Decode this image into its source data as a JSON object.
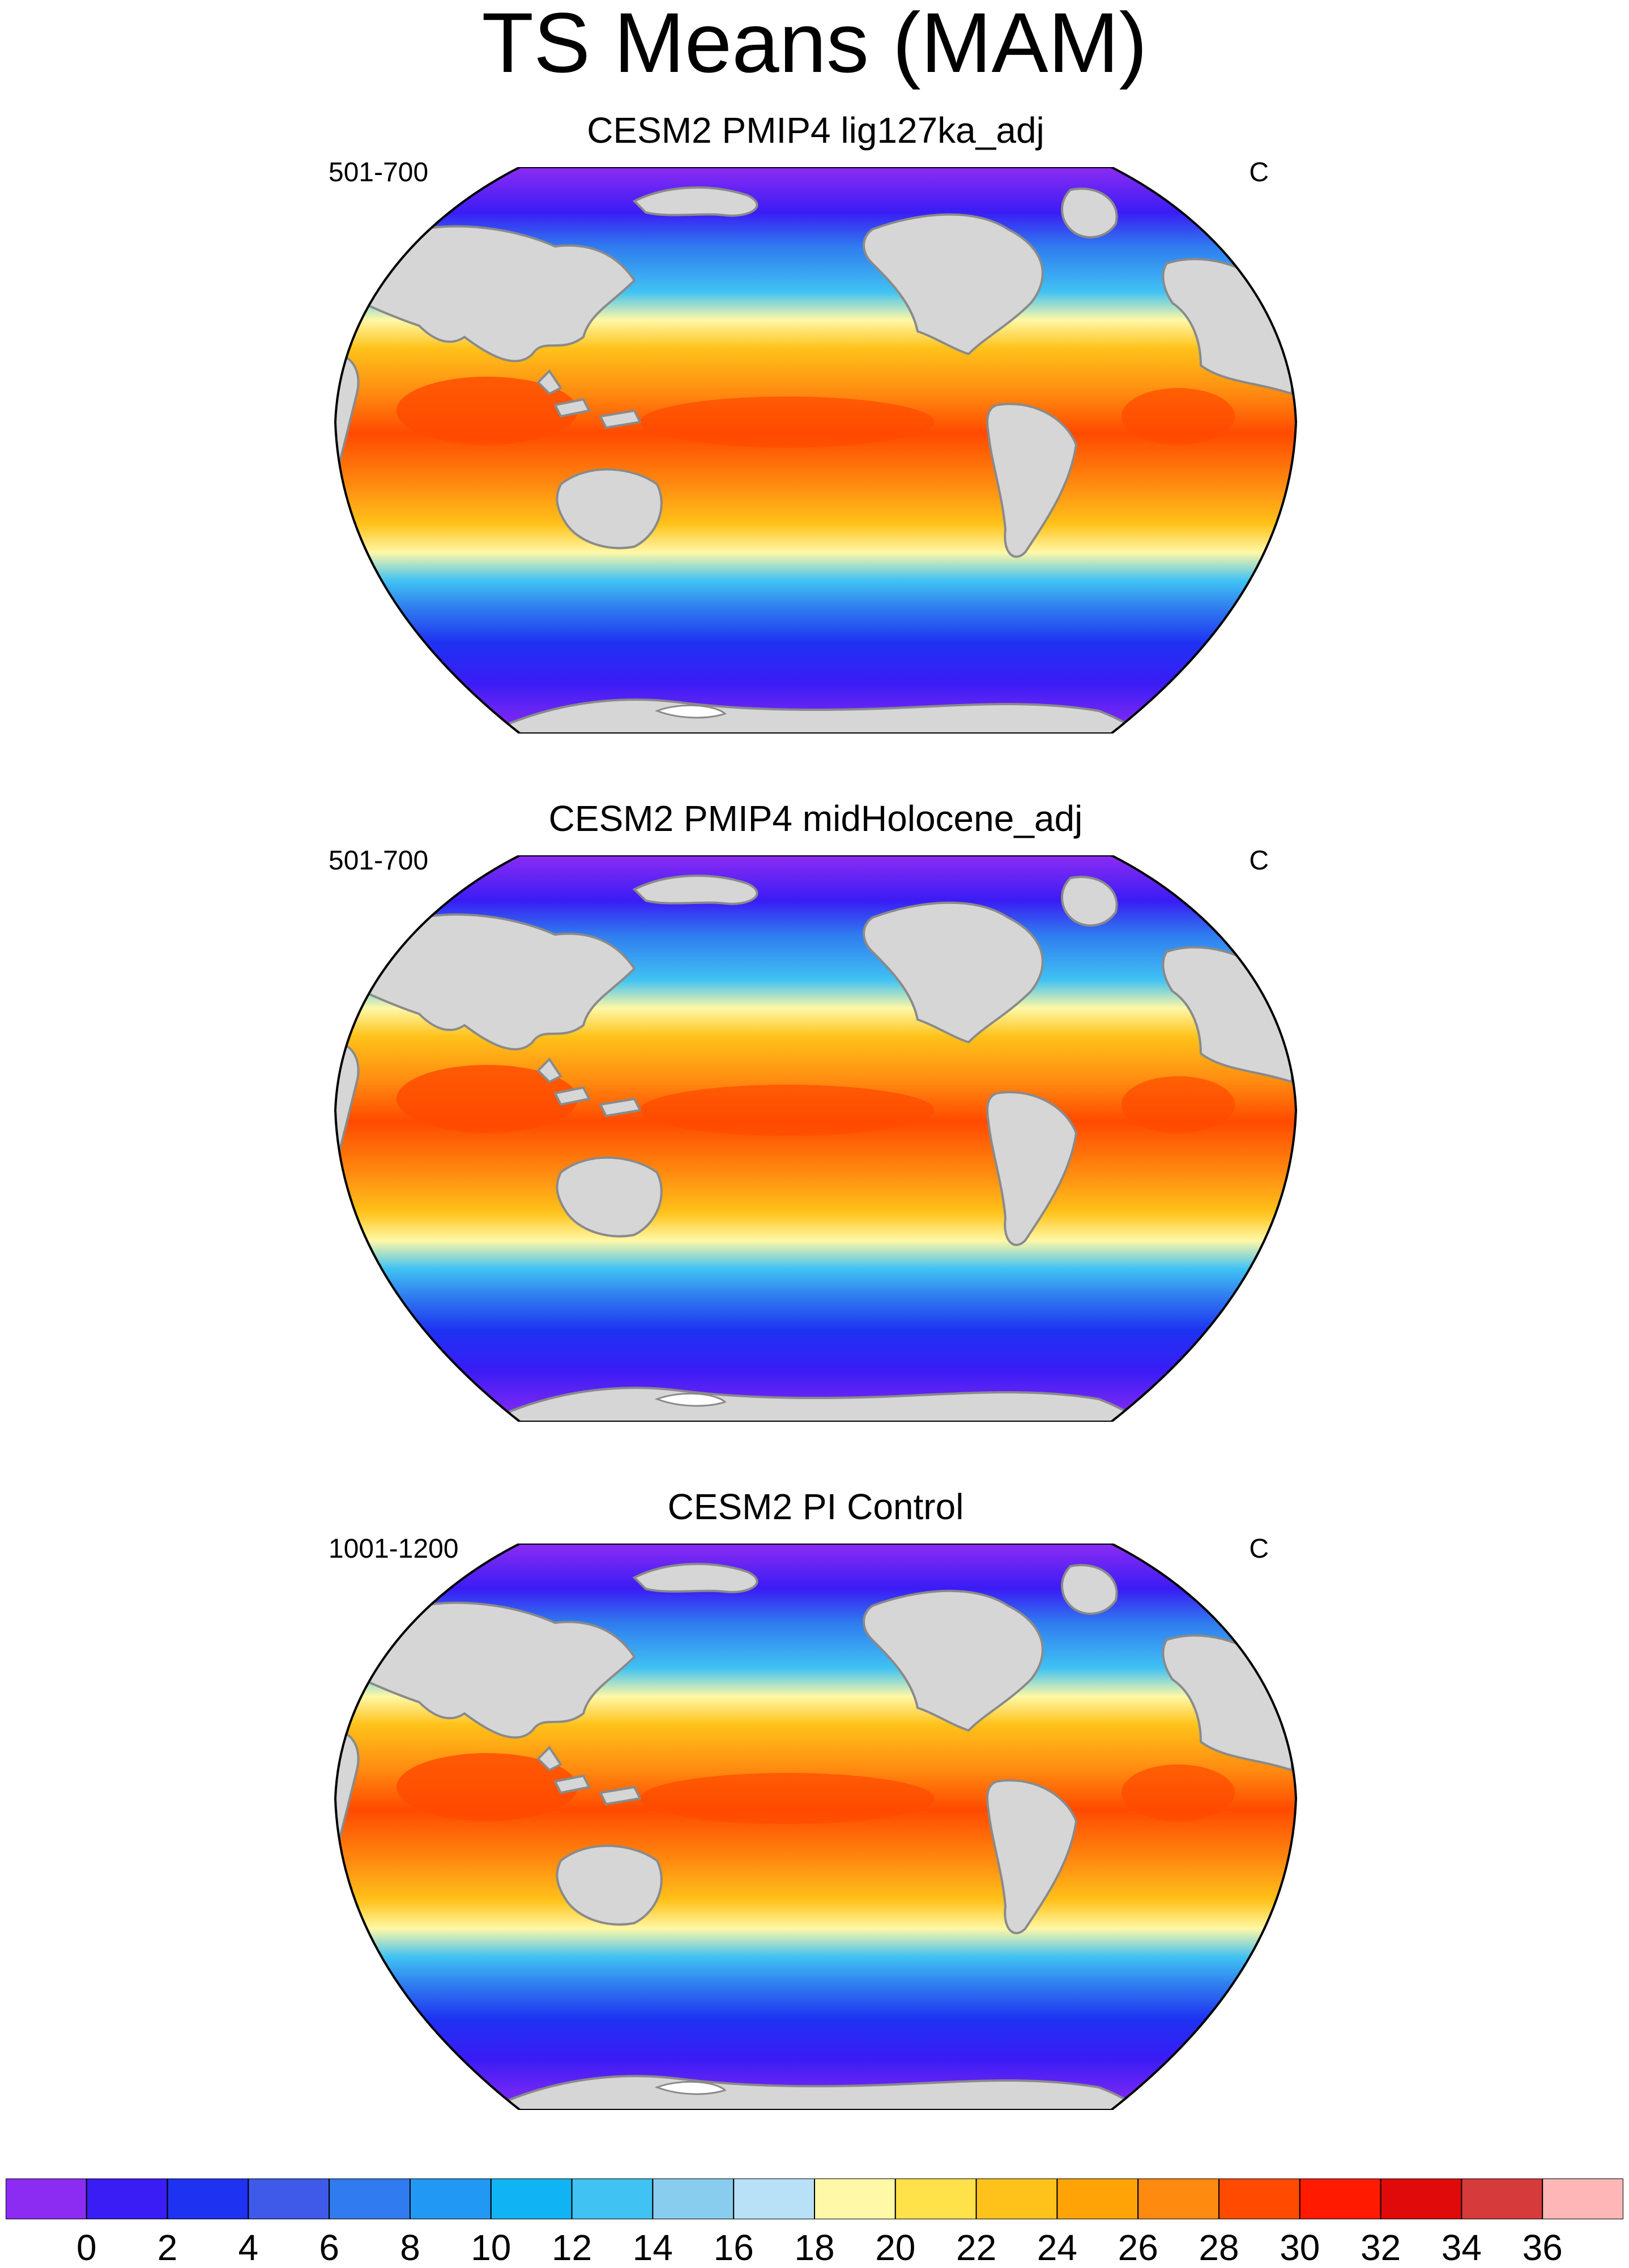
{
  "figure": {
    "title": "TS Means (MAM)"
  },
  "panels": [
    {
      "title": "CESM2 PMIP4 lig127ka_adj",
      "period": "501-700",
      "units": "C"
    },
    {
      "title": "CESM2 PMIP4 midHolocene_adj",
      "period": "501-700",
      "units": "C"
    },
    {
      "title": "CESM2 PI Control",
      "period": "1001-1200",
      "units": "C"
    }
  ],
  "colorbar": {
    "labels": [
      "0",
      "2",
      "4",
      "6",
      "8",
      "10",
      "12",
      "14",
      "16",
      "18",
      "20",
      "22",
      "24",
      "26",
      "28",
      "30",
      "32",
      "34",
      "36"
    ],
    "colors": [
      "#8c2cf3",
      "#3a1cf5",
      "#1e32f2",
      "#3f5ae8",
      "#2f7bef",
      "#2298f5",
      "#10b4f5",
      "#40c2f3",
      "#88cdee",
      "#b8e0f6",
      "#fff8a6",
      "#ffe14a",
      "#ffc21a",
      "#ffa306",
      "#ff8a10",
      "#ff4a00",
      "#ff1a00",
      "#e00a0a",
      "#d63a3a",
      "#ffb6b6"
    ]
  },
  "colors": {
    "land": "#d6d6d6",
    "ice": "#ffffff",
    "coastline": "#8a8a8a"
  }
}
